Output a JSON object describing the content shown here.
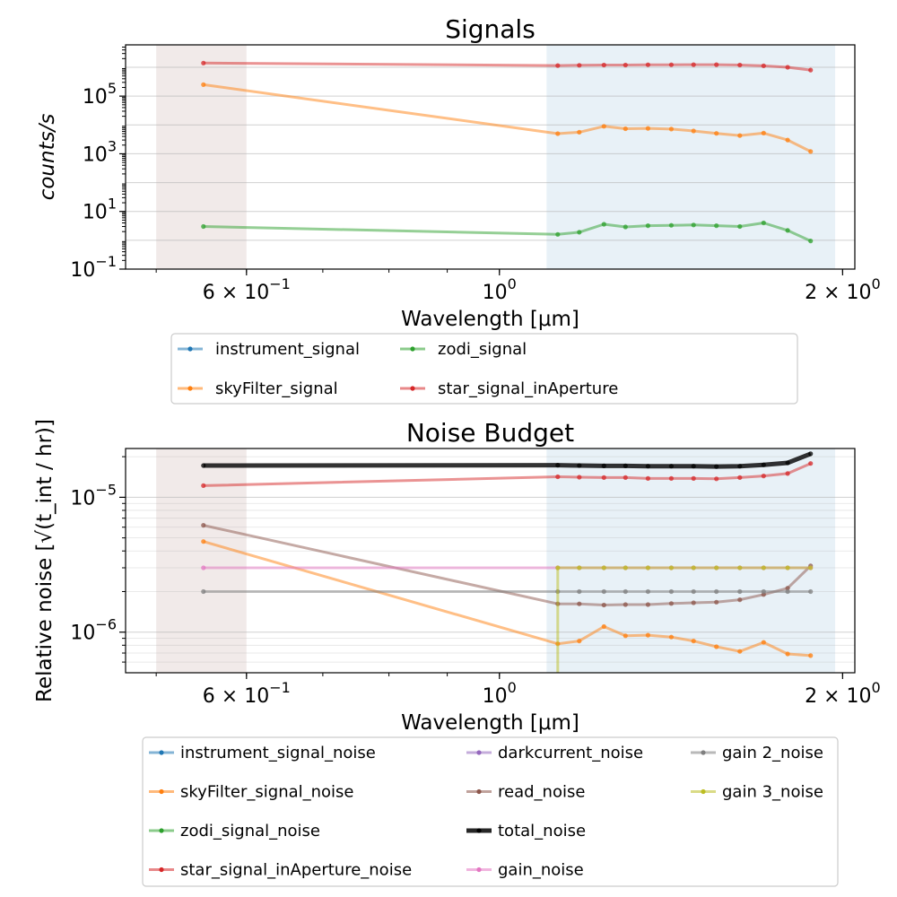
{
  "chart_data": [
    {
      "type": "line",
      "title": "Signals",
      "xlabel": "Wavelength [μm]",
      "ylabel": "counts/s",
      "xscale": "log",
      "yscale": "log",
      "xlim": [
        0.47,
        2.05
      ],
      "ylim": [
        0.1,
        6000000
      ],
      "xticks": [
        {
          "v": 0.6,
          "base": "6 × 10",
          "exp": "−1"
        },
        {
          "v": 1.0,
          "base": "10",
          "exp": "0"
        },
        {
          "v": 2.0,
          "base": "2 × 10",
          "exp": "0"
        }
      ],
      "yticks": [
        {
          "v": 0.1,
          "base": "10",
          "exp": "−1"
        },
        {
          "v": 10,
          "base": "10",
          "exp": "1"
        },
        {
          "v": 1000,
          "base": "10",
          "exp": "3"
        },
        {
          "v": 100000,
          "base": "10",
          "exp": "5"
        }
      ],
      "grid": "y-major",
      "bands": [
        {
          "x0": 0.5,
          "x1": 0.6,
          "color": "#8c564b",
          "alpha": 0.12
        },
        {
          "x0": 1.1,
          "x1": 1.97,
          "color": "#1f77b4",
          "alpha": 0.1
        }
      ],
      "series": [
        {
          "name": "instrument_signal",
          "color": "#1f77b4",
          "width": 3,
          "points": []
        },
        {
          "name": "skyFilter_signal",
          "color": "#ff7f0e",
          "width": 3,
          "points": [
            [
              0.55,
              250000
            ],
            [
              1.125,
              5000
            ],
            [
              1.175,
              5600
            ],
            [
              1.235,
              9000
            ],
            [
              1.29,
              7400
            ],
            [
              1.35,
              7600
            ],
            [
              1.415,
              7200
            ],
            [
              1.48,
              6200
            ],
            [
              1.55,
              5100
            ],
            [
              1.625,
              4300
            ],
            [
              1.705,
              5200
            ],
            [
              1.79,
              3000
            ],
            [
              1.875,
              1200
            ]
          ]
        },
        {
          "name": "zodi_signal",
          "color": "#2ca02c",
          "width": 3,
          "points": [
            [
              0.55,
              3.0
            ],
            [
              1.125,
              1.6
            ],
            [
              1.175,
              1.9
            ],
            [
              1.235,
              3.6
            ],
            [
              1.29,
              2.9
            ],
            [
              1.35,
              3.2
            ],
            [
              1.415,
              3.3
            ],
            [
              1.48,
              3.4
            ],
            [
              1.55,
              3.2
            ],
            [
              1.625,
              3.0
            ],
            [
              1.705,
              4.0
            ],
            [
              1.79,
              2.2
            ],
            [
              1.875,
              0.95
            ]
          ]
        },
        {
          "name": "star_signal_inAperture",
          "color": "#d62728",
          "width": 3,
          "points": [
            [
              0.55,
              1400000
            ],
            [
              1.125,
              1150000
            ],
            [
              1.175,
              1170000
            ],
            [
              1.235,
              1200000
            ],
            [
              1.29,
              1200000
            ],
            [
              1.35,
              1220000
            ],
            [
              1.415,
              1220000
            ],
            [
              1.48,
              1230000
            ],
            [
              1.55,
              1230000
            ],
            [
              1.625,
              1200000
            ],
            [
              1.705,
              1120000
            ],
            [
              1.79,
              1000000
            ],
            [
              1.875,
              800000
            ]
          ]
        }
      ],
      "legend": {
        "placement": "below",
        "columns": 3
      }
    },
    {
      "type": "line",
      "title": "Noise Budget",
      "xlabel": "Wavelength [μm]",
      "ylabel": "Relative noise [√(t_int / hr)]",
      "xscale": "log",
      "yscale": "log",
      "xlim": [
        0.47,
        2.05
      ],
      "ylim": [
        5e-07,
        2.3e-05
      ],
      "xticks": [
        {
          "v": 0.6,
          "base": "6 × 10",
          "exp": "−1"
        },
        {
          "v": 1.0,
          "base": "10",
          "exp": "0"
        },
        {
          "v": 2.0,
          "base": "2 × 10",
          "exp": "0"
        }
      ],
      "yticks": [
        {
          "v": 1e-06,
          "base": "10",
          "exp": "−6"
        },
        {
          "v": 1e-05,
          "base": "10",
          "exp": "−5"
        }
      ],
      "grid": "y-major-minor",
      "bands": [
        {
          "x0": 0.5,
          "x1": 0.6,
          "color": "#8c564b",
          "alpha": 0.12
        },
        {
          "x0": 1.1,
          "x1": 1.97,
          "color": "#1f77b4",
          "alpha": 0.1
        }
      ],
      "series": [
        {
          "name": "instrument_signal_noise",
          "color": "#1f77b4",
          "width": 3,
          "points": []
        },
        {
          "name": "skyFilter_signal_noise",
          "color": "#ff7f0e",
          "width": 3,
          "points": [
            [
              0.55,
              4.7e-06
            ],
            [
              1.125,
              8.2e-07
            ],
            [
              1.175,
              8.6e-07
            ],
            [
              1.235,
              1.1e-06
            ],
            [
              1.29,
              9.4e-07
            ],
            [
              1.35,
              9.5e-07
            ],
            [
              1.415,
              9.2e-07
            ],
            [
              1.48,
              8.6e-07
            ],
            [
              1.55,
              7.8e-07
            ],
            [
              1.625,
              7.2e-07
            ],
            [
              1.705,
              8.4e-07
            ],
            [
              1.79,
              6.9e-07
            ],
            [
              1.875,
              6.7e-07
            ]
          ]
        },
        {
          "name": "zodi_signal_noise",
          "color": "#2ca02c",
          "width": 3,
          "points": []
        },
        {
          "name": "star_signal_inAperture_noise",
          "color": "#d62728",
          "width": 3,
          "points": [
            [
              0.55,
              1.22e-05
            ],
            [
              1.125,
              1.42e-05
            ],
            [
              1.175,
              1.41e-05
            ],
            [
              1.235,
              1.4e-05
            ],
            [
              1.29,
              1.4e-05
            ],
            [
              1.35,
              1.38e-05
            ],
            [
              1.415,
              1.38e-05
            ],
            [
              1.48,
              1.38e-05
            ],
            [
              1.55,
              1.37e-05
            ],
            [
              1.625,
              1.4e-05
            ],
            [
              1.705,
              1.44e-05
            ],
            [
              1.79,
              1.5e-05
            ],
            [
              1.875,
              1.78e-05
            ]
          ]
        },
        {
          "name": "darkcurrent_noise",
          "color": "#9467bd",
          "width": 3,
          "points": []
        },
        {
          "name": "read_noise",
          "color": "#8c564b",
          "width": 3,
          "points": [
            [
              0.55,
              6.2e-06
            ],
            [
              1.125,
              1.62e-06
            ],
            [
              1.175,
              1.62e-06
            ],
            [
              1.235,
              1.59e-06
            ],
            [
              1.29,
              1.6e-06
            ],
            [
              1.35,
              1.6e-06
            ],
            [
              1.415,
              1.63e-06
            ],
            [
              1.48,
              1.65e-06
            ],
            [
              1.55,
              1.67e-06
            ],
            [
              1.625,
              1.74e-06
            ],
            [
              1.705,
              1.9e-06
            ],
            [
              1.79,
              2.12e-06
            ],
            [
              1.875,
              3.1e-06
            ]
          ]
        },
        {
          "name": "total_noise",
          "color": "#000000",
          "width": 5,
          "points": [
            [
              0.55,
              1.72e-05
            ],
            [
              1.125,
              1.73e-05
            ],
            [
              1.175,
              1.72e-05
            ],
            [
              1.235,
              1.71e-05
            ],
            [
              1.29,
              1.71e-05
            ],
            [
              1.35,
              1.7e-05
            ],
            [
              1.415,
              1.7e-05
            ],
            [
              1.48,
              1.7e-05
            ],
            [
              1.55,
              1.69e-05
            ],
            [
              1.625,
              1.7e-05
            ],
            [
              1.705,
              1.74e-05
            ],
            [
              1.79,
              1.8e-05
            ],
            [
              1.875,
              2.1e-05
            ]
          ]
        },
        {
          "name": "gain_noise",
          "color": "#e377c2",
          "width": 3,
          "points": [
            [
              0.55,
              3e-06
            ],
            [
              1.125,
              3e-06
            ],
            [
              1.175,
              3e-06
            ],
            [
              1.235,
              3e-06
            ],
            [
              1.29,
              3e-06
            ],
            [
              1.35,
              3e-06
            ],
            [
              1.415,
              3e-06
            ],
            [
              1.48,
              3e-06
            ],
            [
              1.55,
              3e-06
            ],
            [
              1.625,
              3e-06
            ],
            [
              1.705,
              3e-06
            ],
            [
              1.79,
              3e-06
            ],
            [
              1.875,
              3e-06
            ]
          ]
        },
        {
          "name": "gain 2_noise",
          "color": "#7f7f7f",
          "width": 3,
          "points": [
            [
              0.55,
              2e-06
            ],
            [
              1.125,
              2e-06
            ],
            [
              1.175,
              2e-06
            ],
            [
              1.235,
              2e-06
            ],
            [
              1.29,
              2e-06
            ],
            [
              1.35,
              2e-06
            ],
            [
              1.415,
              2e-06
            ],
            [
              1.48,
              2e-06
            ],
            [
              1.55,
              2e-06
            ],
            [
              1.625,
              2e-06
            ],
            [
              1.705,
              2e-06
            ],
            [
              1.79,
              2e-06
            ],
            [
              1.875,
              2e-06
            ]
          ]
        },
        {
          "name": "gain 3_noise",
          "color": "#bcbd22",
          "width": 3,
          "points": [
            [
              1.125,
              4e-07
            ],
            [
              1.125,
              3e-06
            ],
            [
              1.175,
              3e-06
            ],
            [
              1.235,
              3e-06
            ],
            [
              1.29,
              3e-06
            ],
            [
              1.35,
              3e-06
            ],
            [
              1.415,
              3e-06
            ],
            [
              1.48,
              3e-06
            ],
            [
              1.55,
              3e-06
            ],
            [
              1.625,
              3e-06
            ],
            [
              1.705,
              3e-06
            ],
            [
              1.79,
              3e-06
            ],
            [
              1.875,
              3e-06
            ]
          ]
        }
      ],
      "legend": {
        "placement": "below",
        "columns": 3
      }
    }
  ]
}
